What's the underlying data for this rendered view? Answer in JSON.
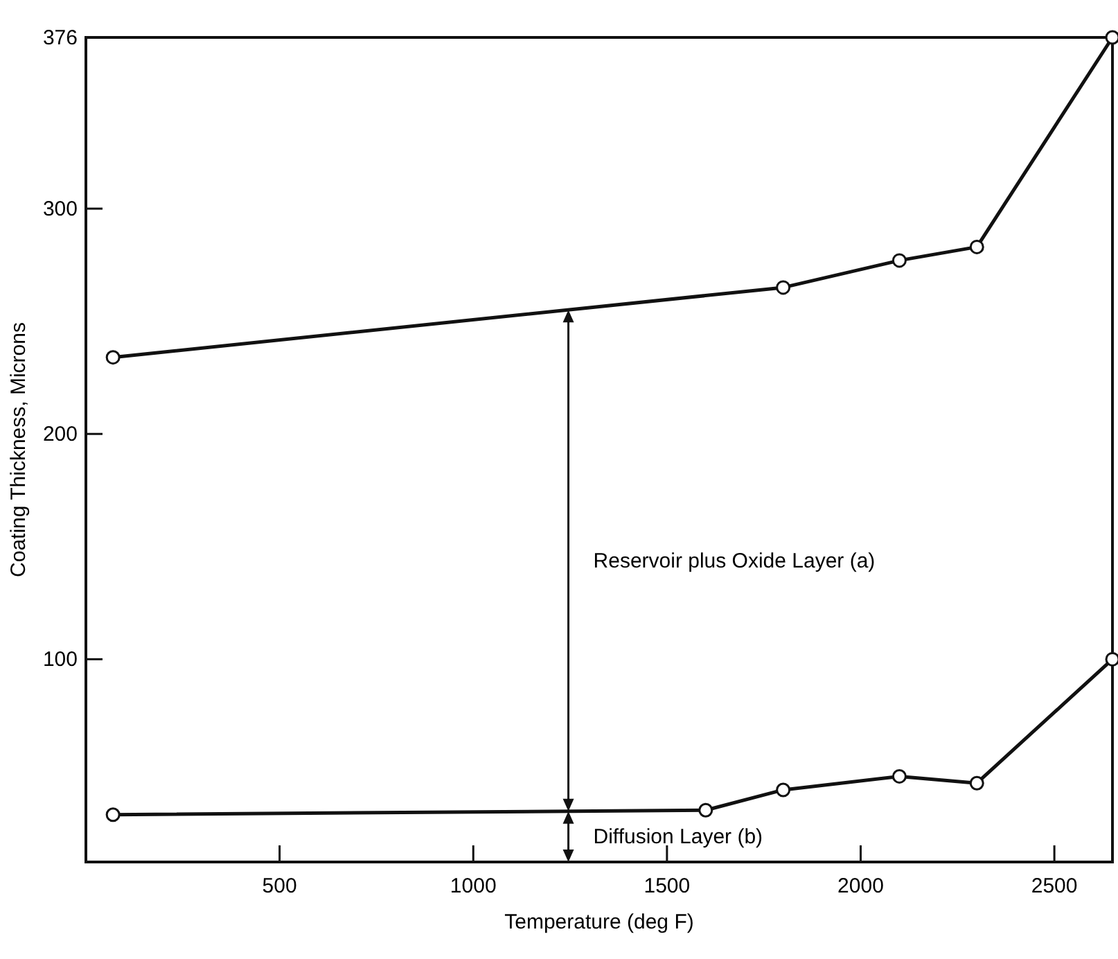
{
  "chart_data": {
    "type": "line",
    "xlabel": "Temperature (deg F)",
    "ylabel": "Coating Thickness, Microns",
    "xlim": [
      0,
      2650
    ],
    "xticks": [
      500,
      1000,
      1500,
      2000,
      2500
    ],
    "ylim": [
      10,
      376
    ],
    "yticks": [
      100,
      200,
      300,
      376
    ],
    "grid": false,
    "marker": "circle",
    "line_style": "solid",
    "series": [
      {
        "x": [
          70,
          1800,
          2100,
          2300,
          2650
        ],
        "values": [
          234,
          265,
          277,
          283,
          376
        ],
        "color": "#111111"
      },
      {
        "x": [
          70,
          1600,
          1800,
          2100,
          2300,
          2650
        ],
        "values": [
          31,
          33,
          42,
          48,
          45,
          100
        ],
        "color": "#111111"
      }
    ],
    "annotations": [
      "Reservoir plus Oxide Layer (a)",
      "Diffusion Layer (b)"
    ]
  }
}
